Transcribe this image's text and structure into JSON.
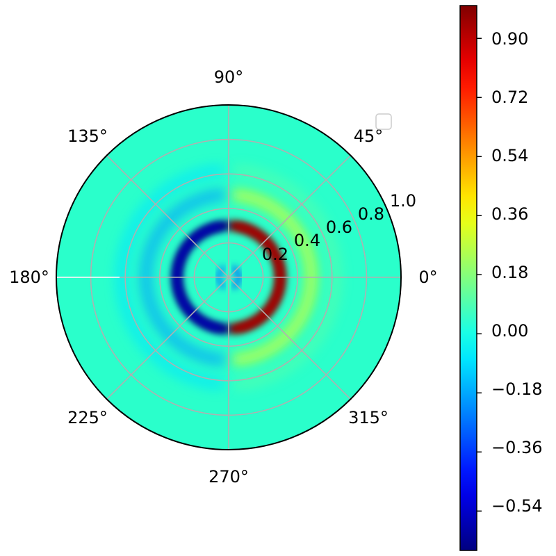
{
  "chart_data": {
    "type": "heatmap",
    "projection": "polar",
    "title": "",
    "colormap": "jet",
    "color_range": [
      -0.66,
      1.0
    ],
    "angular_ticks": [
      "0°",
      "45°",
      "90°",
      "135°",
      "180°",
      "225°",
      "270°",
      "315°"
    ],
    "radial_ticks": [
      "0.2",
      "0.4",
      "0.6",
      "0.8",
      "1.0"
    ],
    "radial_values": [
      0.2,
      0.4,
      0.6,
      0.8,
      1.0
    ],
    "rlim": [
      0,
      1.0
    ],
    "grid": true,
    "legend": {
      "placement": "upper right",
      "entries": []
    },
    "colorbar": {
      "ticks": [
        "0.90",
        "0.72",
        "0.54",
        "0.36",
        "0.18",
        "0.00",
        "−0.18",
        "−0.36",
        "−0.54"
      ],
      "tick_values": [
        0.9,
        0.72,
        0.54,
        0.36,
        0.18,
        0.0,
        -0.18,
        -0.36,
        -0.54
      ]
    },
    "features": [
      {
        "description": "positive arc",
        "r": 0.3,
        "theta_range_deg": [
          -85,
          85
        ],
        "value": 1.0
      },
      {
        "description": "negative arc",
        "r": 0.3,
        "theta_range_deg": [
          95,
          265
        ],
        "value": -0.66
      },
      {
        "description": "positive ring",
        "r": 0.48,
        "theta_range_deg": [
          -85,
          85
        ],
        "value": 0.35
      },
      {
        "description": "negative ring",
        "r": 0.48,
        "theta_range_deg": [
          95,
          265
        ],
        "value": -0.2
      },
      {
        "description": "outer ring",
        "r": 0.62,
        "theta_range_deg": [
          -85,
          85
        ],
        "value": 0.1
      },
      {
        "description": "outer ring",
        "r": 0.62,
        "theta_range_deg": [
          95,
          265
        ],
        "value": -0.08
      },
      {
        "description": "center lobe",
        "r": 0.06,
        "theta_range_deg": [
          -60,
          60
        ],
        "value": -0.3
      },
      {
        "description": "center lobe",
        "r": 0.06,
        "theta_range_deg": [
          120,
          240
        ],
        "value": -0.25
      }
    ]
  }
}
